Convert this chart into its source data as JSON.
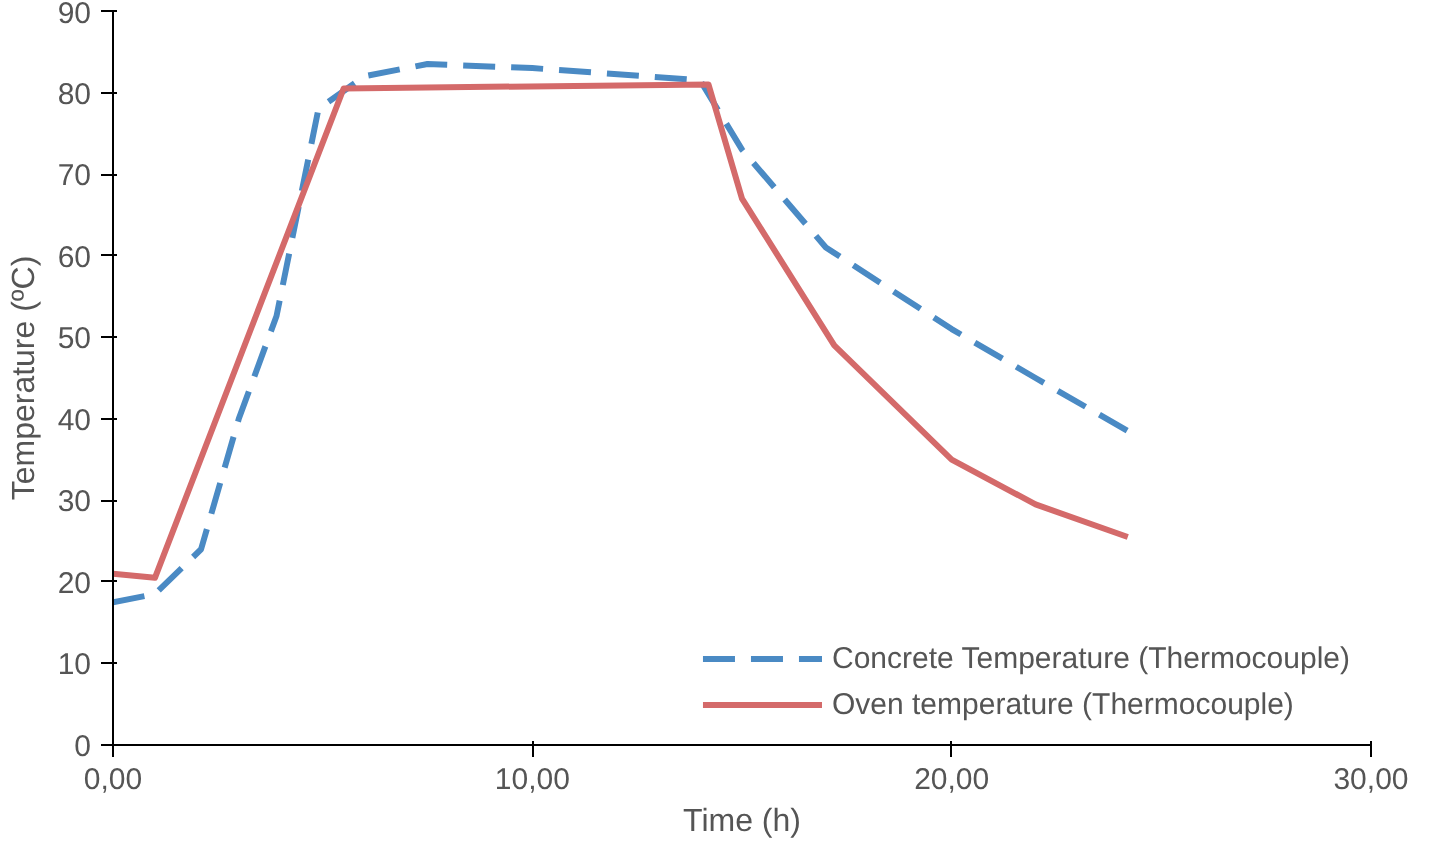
{
  "chart_data": {
    "type": "line",
    "xlabel": "Time (h)",
    "ylabel": "Temperature (ºC)",
    "xlim": [
      0,
      30
    ],
    "ylim": [
      0,
      90
    ],
    "xticks": [
      {
        "value": 0,
        "label": "0,00"
      },
      {
        "value": 10,
        "label": "10,00"
      },
      {
        "value": 20,
        "label": "20,00"
      },
      {
        "value": 30,
        "label": "30,00"
      }
    ],
    "yticks": [
      0,
      10,
      20,
      30,
      40,
      50,
      60,
      70,
      80,
      90
    ],
    "grid": false,
    "legend": "bottom right",
    "series": [
      {
        "name": "Concrete Temperature (Thermocouple)",
        "color": "#4a8ac4",
        "line_style": "dashed",
        "x": [
          0,
          1,
          2.1,
          3,
          3.9,
          4.9,
          6,
          7.5,
          10,
          14,
          15,
          17,
          20,
          22,
          24.2
        ],
        "values": [
          17.5,
          18.5,
          24,
          40,
          52.6,
          78,
          82,
          83.5,
          83,
          81.5,
          73,
          61,
          51,
          45,
          38.5
        ]
      },
      {
        "name": "Oven temperature (Thermocouple)",
        "color": "#d46a6a",
        "line_style": "solid",
        "x": [
          0,
          1,
          5.5,
          14.2,
          15,
          17.2,
          20,
          22,
          24.2
        ],
        "values": [
          21,
          20.5,
          80.5,
          81,
          67,
          49,
          35,
          29.5,
          25.5
        ]
      }
    ]
  }
}
